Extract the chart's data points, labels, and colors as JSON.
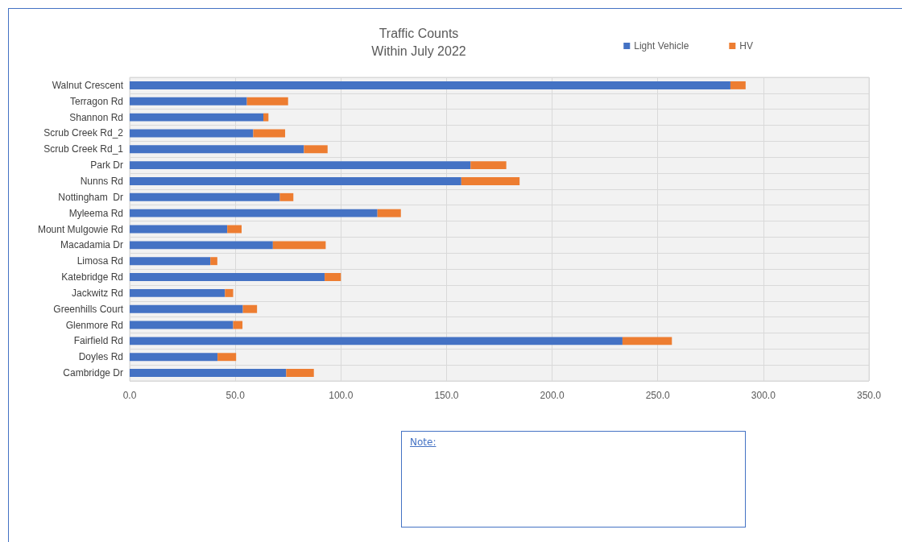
{
  "chart_data": {
    "type": "bar",
    "orientation": "horizontal",
    "stacked": true,
    "title": "Traffic Counts",
    "subtitle": "Within July 2022",
    "categories": [
      "Walnut Crescent",
      "Terragon Rd",
      "Shannon Rd",
      "Scrub Creek Rd_2",
      "Scrub Creek Rd_1",
      "Park Dr",
      "Nunns Rd",
      "Nottingham  Dr",
      "Myleema Rd",
      "Mount Mulgowie Rd",
      "Macadamia Dr",
      "Limosa Rd",
      "Katebridge Rd",
      "Jackwitz Rd",
      "Greenhills Court",
      "Glenmore Rd",
      "Fairfield Rd",
      "Doyles Rd",
      "Cambridge Dr"
    ],
    "series": [
      {
        "name": "Light Vehicle",
        "color": "#4472c4",
        "values": [
          284.4,
          55.5,
          63.3,
          58.5,
          82.5,
          161.4,
          157.0,
          71.1,
          117.3,
          46.2,
          67.8,
          38.2,
          92.3,
          45.1,
          53.6,
          49.0,
          233.3,
          41.6,
          74.1
        ]
      },
      {
        "name": "HV",
        "color": "#ed7d31",
        "values": [
          7.2,
          19.5,
          2.4,
          15.1,
          11.2,
          16.9,
          27.6,
          6.4,
          11.1,
          6.8,
          25.0,
          3.3,
          7.7,
          3.9,
          6.7,
          4.4,
          23.4,
          8.8,
          13.1
        ]
      }
    ],
    "xlim": [
      0,
      350
    ],
    "xticks": [
      {
        "value": 0,
        "label": "0.0"
      },
      {
        "value": 50,
        "label": "50.0"
      },
      {
        "value": 100,
        "label": "100.0"
      },
      {
        "value": 150,
        "label": "150.0"
      },
      {
        "value": 200,
        "label": "200.0"
      },
      {
        "value": 250,
        "label": "250.0"
      },
      {
        "value": 300,
        "label": "300.0"
      },
      {
        "value": 350,
        "label": "350.0"
      }
    ],
    "grid": true,
    "legend": "top right",
    "annotations": [
      "Note:"
    ]
  }
}
